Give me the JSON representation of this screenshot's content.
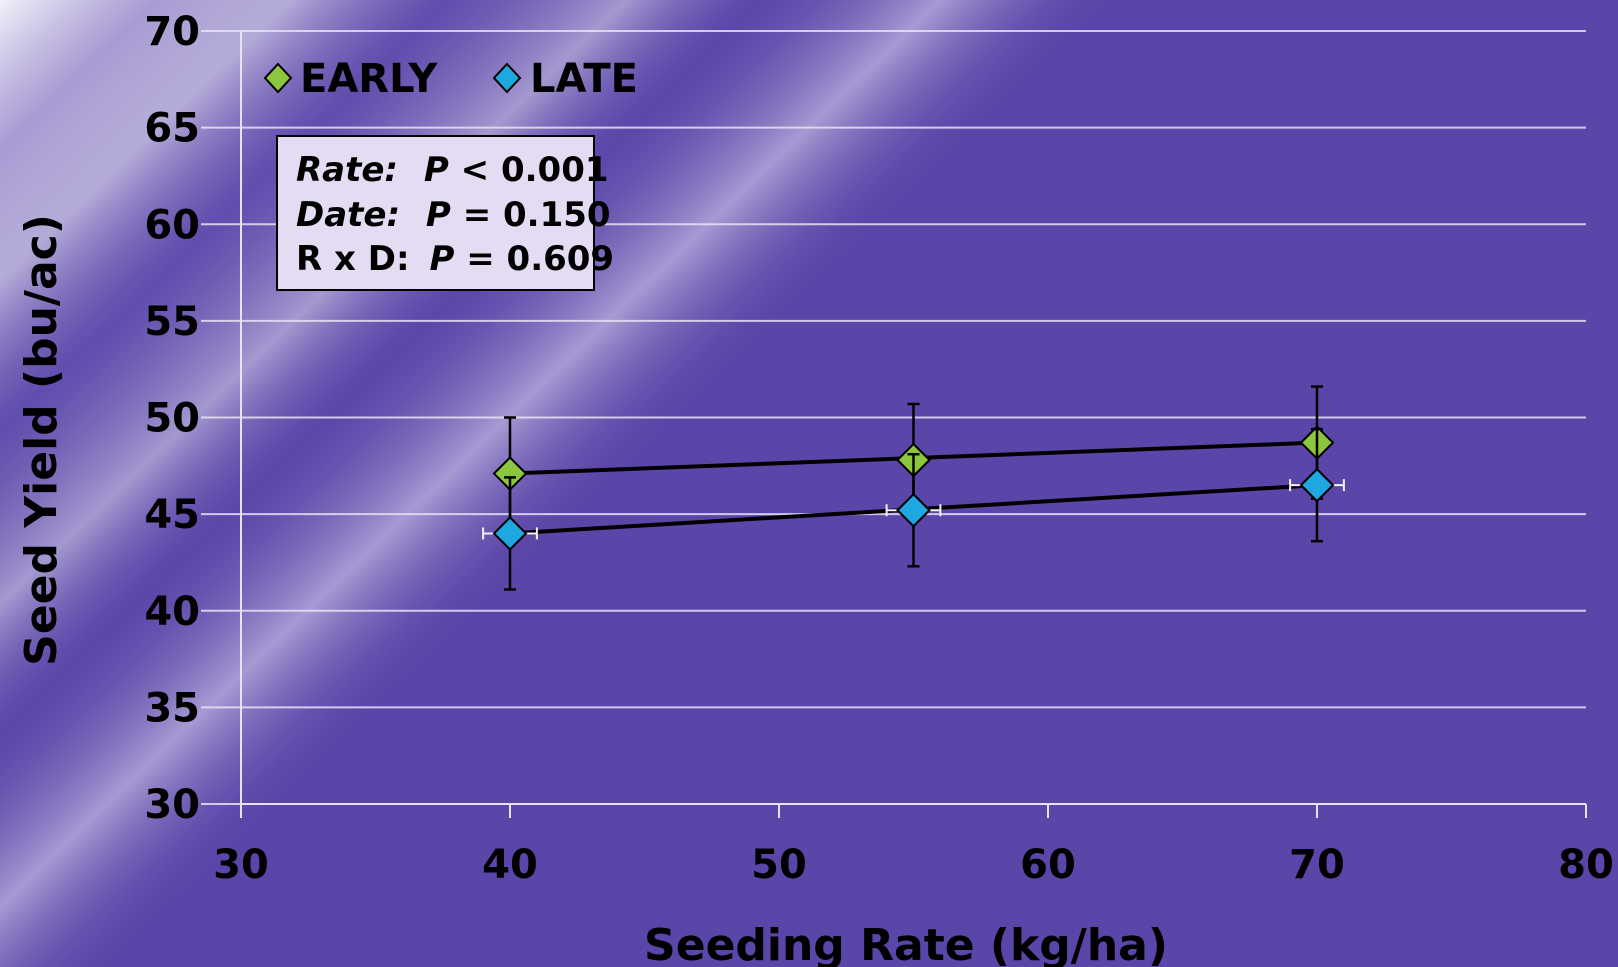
{
  "chart_data": {
    "type": "scatter",
    "xlabel": "Seeding Rate (kg/ha)",
    "ylabel": "Seed Yield (bu/ac)",
    "xlim": [
      30,
      80
    ],
    "ylim": [
      30,
      70
    ],
    "xticks": [
      "30",
      "40",
      "50",
      "60",
      "70",
      "80"
    ],
    "yticks": [
      "30",
      "35",
      "40",
      "45",
      "50",
      "55",
      "60",
      "65",
      "70"
    ],
    "grid": true,
    "legend_position": "top-left",
    "series": [
      {
        "name": "EARLY",
        "color": "#8cc63f",
        "marker": "diamond",
        "x": [
          40,
          55,
          70
        ],
        "y": [
          47.1,
          47.8,
          48.7
        ],
        "y_error": [
          2.9,
          2.9,
          2.9
        ],
        "trendline": [
          [
            40,
            47.1
          ],
          [
            70,
            48.7
          ]
        ]
      },
      {
        "name": "LATE",
        "color": "#1ea7e1",
        "marker": "diamond",
        "x": [
          40,
          55,
          70
        ],
        "y": [
          44.0,
          45.2,
          46.5
        ],
        "y_error": [
          2.9,
          2.9,
          2.9
        ],
        "x_error": [
          1.0,
          1.0,
          1.0
        ],
        "trendline": [
          [
            40,
            44.0
          ],
          [
            70,
            46.5
          ]
        ]
      }
    ],
    "stats_box": {
      "line1": {
        "label": "Rate:",
        "p": "P",
        "value": " < 0.001"
      },
      "line2": {
        "label": "Date:",
        "p": "P",
        "value": " = 0.150"
      },
      "line3": {
        "label": "R x D:",
        "p": "P",
        "value": " = 0.609"
      }
    }
  }
}
